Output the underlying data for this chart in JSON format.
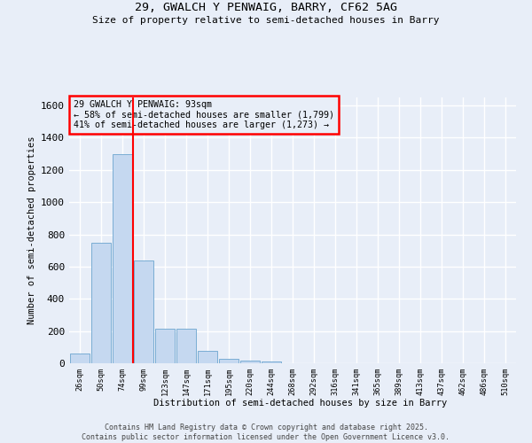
{
  "title_line1": "29, GWALCH Y PENWAIG, BARRY, CF62 5AG",
  "title_line2": "Size of property relative to semi-detached houses in Barry",
  "xlabel": "Distribution of semi-detached houses by size in Barry",
  "ylabel": "Number of semi-detached properties",
  "categories": [
    "26sqm",
    "50sqm",
    "74sqm",
    "99sqm",
    "123sqm",
    "147sqm",
    "171sqm",
    "195sqm",
    "220sqm",
    "244sqm",
    "268sqm",
    "292sqm",
    "316sqm",
    "341sqm",
    "365sqm",
    "389sqm",
    "413sqm",
    "437sqm",
    "462sqm",
    "486sqm",
    "510sqm"
  ],
  "values": [
    60,
    750,
    1300,
    640,
    215,
    215,
    75,
    25,
    15,
    10,
    0,
    0,
    0,
    0,
    0,
    0,
    0,
    0,
    0,
    0,
    0
  ],
  "bar_color": "#c5d8f0",
  "bar_edge_color": "#7aadd4",
  "red_line_x": 2.5,
  "annotation_title": "29 GWALCH Y PENWAIG: 93sqm",
  "annotation_line2": "← 58% of semi-detached houses are smaller (1,799)",
  "annotation_line3": "41% of semi-detached houses are larger (1,273) →",
  "footer_line1": "Contains HM Land Registry data © Crown copyright and database right 2025.",
  "footer_line2": "Contains public sector information licensed under the Open Government Licence v3.0.",
  "bg_color": "#e8eef8",
  "ylim": [
    0,
    1650
  ],
  "yticks": [
    0,
    200,
    400,
    600,
    800,
    1000,
    1200,
    1400,
    1600
  ],
  "grid_color": "#ffffff"
}
